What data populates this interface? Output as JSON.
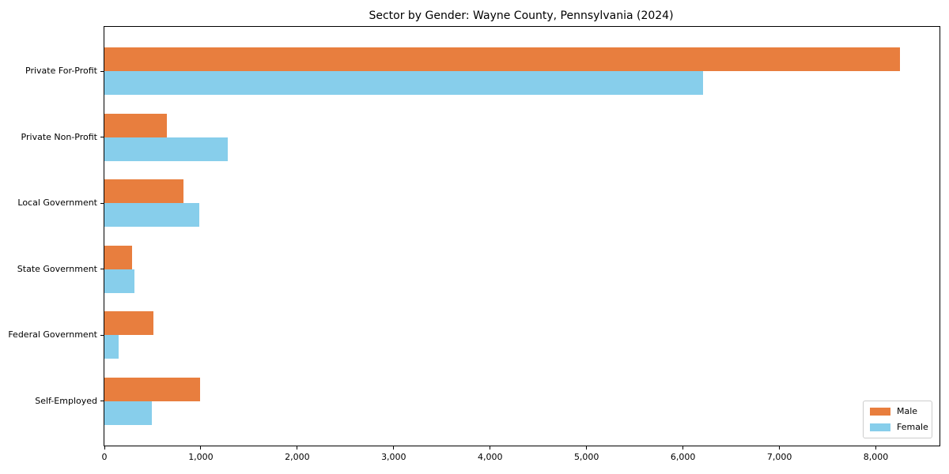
{
  "chart_data": {
    "type": "bar",
    "orientation": "horizontal",
    "title": "Sector by Gender: Wayne County, Pennsylvania (2024)",
    "categories": [
      "Private For-Profit",
      "Private Non-Profit",
      "Local Government",
      "State Government",
      "Federal Government",
      "Self-Employed"
    ],
    "series": [
      {
        "name": "Male",
        "color": "#e87e3e",
        "values": [
          8250,
          650,
          820,
          290,
          510,
          990
        ]
      },
      {
        "name": "Female",
        "color": "#87ceeb",
        "values": [
          6210,
          1280,
          980,
          310,
          150,
          490
        ]
      }
    ],
    "xlabel": "",
    "ylabel": "",
    "xlim": [
      0,
      8660
    ],
    "xticks": {
      "values": [
        0,
        1000,
        2000,
        3000,
        4000,
        5000,
        6000,
        7000,
        8000
      ],
      "labels": [
        "0",
        "1,000",
        "2,000",
        "3,000",
        "4,000",
        "5,000",
        "6,000",
        "7,000",
        "8,000"
      ]
    },
    "grid": "off",
    "legend_position": "lower right",
    "colors": {
      "spine": "#000000",
      "legend_border": "#cccccc",
      "background": "#ffffff"
    }
  }
}
